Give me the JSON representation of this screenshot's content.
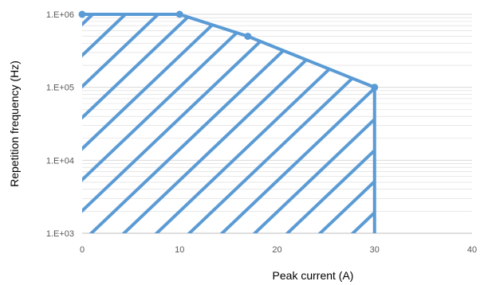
{
  "chart_data": {
    "type": "area",
    "title": "",
    "xlabel": "Peak current (A)",
    "ylabel": "Repetition frequency (Hz)",
    "x_scale": "linear",
    "y_scale": "log",
    "xlim": [
      0,
      40
    ],
    "ylim": [
      1000,
      1000000
    ],
    "x_ticks": [
      0,
      10,
      20,
      30,
      40
    ],
    "x_tick_labels": [
      "0",
      "10",
      "20",
      "30",
      "40"
    ],
    "y_ticks": [
      1000,
      10000,
      100000,
      1000000
    ],
    "y_tick_labels": [
      "1.E+03",
      "1.E+04",
      "1.E+05",
      "1.E+06"
    ],
    "grid": "horizontal minor gridlines",
    "fill": "diagonal hatch",
    "series": [
      {
        "x": [
          0,
          10,
          17,
          30,
          30
        ],
        "y": [
          1000000,
          1000000,
          500000,
          100000,
          1000
        ],
        "markers": [
          true,
          true,
          true,
          true,
          false
        ]
      }
    ],
    "colors": {
      "series": "#5b9bd5",
      "grid": "#d9d9d9",
      "tick_text": "#595959"
    }
  }
}
